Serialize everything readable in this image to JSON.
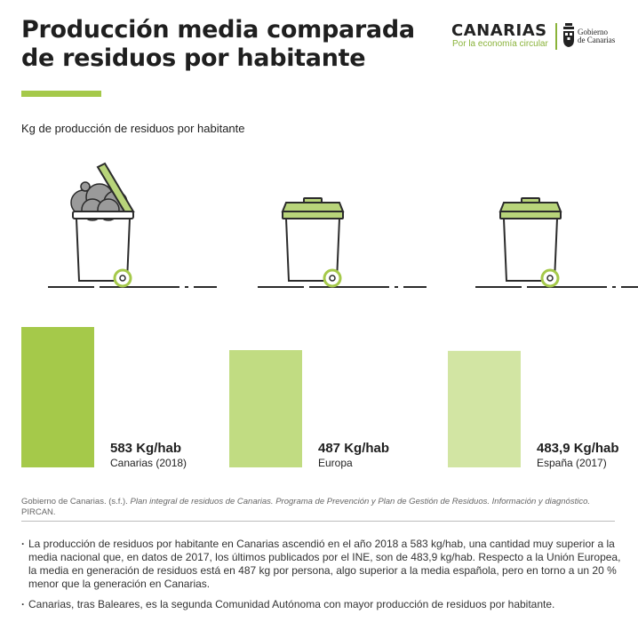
{
  "header": {
    "title_line1": "Producción media comparada",
    "title_line2": "de residuos por habitante"
  },
  "logo": {
    "wordmark": "CANARIAS",
    "tagline": "Por la economía circular",
    "gov_line1": "Gobierno",
    "gov_line2": "de Canarias",
    "icon": "coat-of-arms-icon"
  },
  "subtitle": "Kg de producción de residuos por habitante",
  "colors": {
    "accent": "#a5c94a",
    "bar_canarias": "#a5c94a",
    "bar_europa": "#c1dc82",
    "bar_espana": "#d2e5a3",
    "bin_stroke": "#2b2b2b",
    "lid": "#b8d47a"
  },
  "chart_data": {
    "type": "bar",
    "categories": [
      "Canarias (2018)",
      "Europa",
      "España (2017)"
    ],
    "values": [
      583,
      487,
      483.9
    ],
    "value_labels": [
      "583 Kg/hab",
      "487 Kg/hab",
      "483,9 Kg/hab"
    ],
    "title": "Kg de producción de residuos por habitante",
    "xlabel": "",
    "ylabel": "",
    "ylim": [
      0,
      583
    ],
    "grid": false,
    "icons": [
      "overflowing-trash-bin-icon",
      "trash-bin-icon",
      "trash-bin-icon"
    ]
  },
  "source": {
    "prefix": "Gobierno de Canarias. (s.f.). ",
    "italic": "Plan integral de residuos de Canarias. Programa de Prevención y Plan de Gestión de Residuos. Información y diagnóstico.",
    "suffix": " PIRCAN."
  },
  "notes": [
    "La producción de residuos por habitante en Canarias ascendió en el año 2018 a 583 kg/hab, una cantidad muy superior a la media nacional que, en datos de 2017, los últimos publicados por el INE, son de 483,9 kg/hab. Respecto a la Unión Europea, la media en generación de residuos está en 487 kg por persona, algo superior a la media española, pero en torno a un 20 % menor que la generación en Canarias.",
    "Canarias, tras Baleares, es la segunda Comunidad Autónoma con mayor producción de residuos por habitante."
  ]
}
